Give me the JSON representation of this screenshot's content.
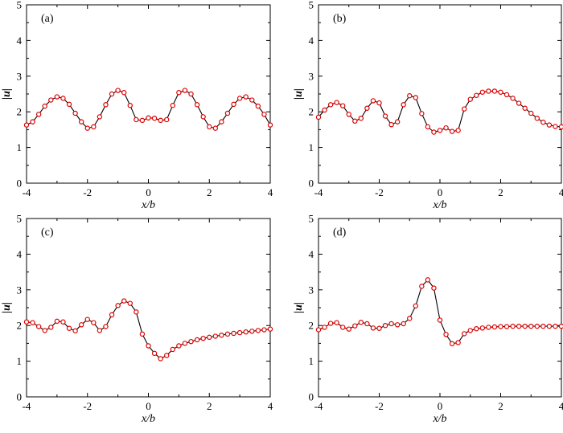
{
  "chart_data": [
    {
      "type": "line",
      "panel_label": "(a)",
      "xlabel": "x/b",
      "ylabel": "|u|",
      "xlim": [
        -4,
        4
      ],
      "ylim": [
        0,
        5
      ],
      "xticks": [
        -4,
        -2,
        0,
        2,
        4
      ],
      "yticks": [
        0,
        1,
        2,
        3,
        4,
        5
      ],
      "xtick_labels": [
        "-4",
        "-2",
        "0",
        "2",
        "4"
      ],
      "ytick_labels": [
        "0",
        "1",
        "2",
        "3",
        "4",
        "5"
      ],
      "grid": false,
      "series": [
        {
          "style": "solid black line with red open circle markers",
          "x": [
            -4.0,
            -3.8,
            -3.6,
            -3.4,
            -3.2,
            -3.0,
            -2.8,
            -2.6,
            -2.4,
            -2.2,
            -2.0,
            -1.8,
            -1.6,
            -1.4,
            -1.2,
            -1.0,
            -0.8,
            -0.6,
            -0.4,
            -0.2,
            0.0,
            0.2,
            0.4,
            0.6,
            0.8,
            1.0,
            1.2,
            1.4,
            1.6,
            1.8,
            2.0,
            2.2,
            2.4,
            2.6,
            2.8,
            3.0,
            3.2,
            3.4,
            3.6,
            3.8,
            4.0
          ],
          "y": [
            1.63,
            1.72,
            1.93,
            2.16,
            2.33,
            2.42,
            2.38,
            2.21,
            1.96,
            1.72,
            1.54,
            1.58,
            1.86,
            2.2,
            2.5,
            2.6,
            2.54,
            2.18,
            1.78,
            1.76,
            1.83,
            1.82,
            1.76,
            1.78,
            2.18,
            2.54,
            2.6,
            2.5,
            2.2,
            1.86,
            1.58,
            1.54,
            1.72,
            1.96,
            2.21,
            2.38,
            2.42,
            2.33,
            2.16,
            1.93,
            1.63
          ]
        }
      ]
    },
    {
      "type": "line",
      "panel_label": "(b)",
      "xlabel": "x/b",
      "ylabel": "|u|",
      "xlim": [
        -4,
        4
      ],
      "ylim": [
        0,
        5
      ],
      "xticks": [
        -4,
        -2,
        0,
        2,
        4
      ],
      "yticks": [
        0,
        1,
        2,
        3,
        4,
        5
      ],
      "xtick_labels": [
        "-4",
        "-2",
        "0",
        "2",
        "4"
      ],
      "ytick_labels": [
        "0",
        "1",
        "2",
        "3",
        "4",
        "5"
      ],
      "grid": false,
      "series": [
        {
          "style": "solid black line with red open circle markers",
          "x": [
            -4.0,
            -3.8,
            -3.6,
            -3.4,
            -3.2,
            -3.0,
            -2.8,
            -2.6,
            -2.4,
            -2.2,
            -2.0,
            -1.8,
            -1.6,
            -1.4,
            -1.2,
            -1.0,
            -0.8,
            -0.6,
            -0.4,
            -0.2,
            0.0,
            0.2,
            0.4,
            0.6,
            0.8,
            1.0,
            1.2,
            1.4,
            1.6,
            1.8,
            2.0,
            2.2,
            2.4,
            2.6,
            2.8,
            3.0,
            3.2,
            3.4,
            3.6,
            3.8,
            4.0
          ],
          "y": [
            1.85,
            2.05,
            2.2,
            2.26,
            2.17,
            1.93,
            1.74,
            1.82,
            2.1,
            2.31,
            2.25,
            1.88,
            1.64,
            1.72,
            2.2,
            2.45,
            2.4,
            1.95,
            1.58,
            1.43,
            1.48,
            1.55,
            1.45,
            1.48,
            2.08,
            2.35,
            2.46,
            2.55,
            2.58,
            2.58,
            2.55,
            2.48,
            2.38,
            2.24,
            2.1,
            1.96,
            1.82,
            1.71,
            1.63,
            1.59,
            1.58
          ]
        }
      ]
    },
    {
      "type": "line",
      "panel_label": "(c)",
      "xlabel": "x/b",
      "ylabel": "|u|",
      "xlim": [
        -4,
        4
      ],
      "ylim": [
        0,
        5
      ],
      "xticks": [
        -4,
        -2,
        0,
        2,
        4
      ],
      "yticks": [
        0,
        1,
        2,
        3,
        4,
        5
      ],
      "xtick_labels": [
        "-4",
        "-2",
        "0",
        "2",
        "4"
      ],
      "ytick_labels": [
        "0",
        "1",
        "2",
        "3",
        "4",
        "5"
      ],
      "grid": false,
      "series": [
        {
          "style": "solid black line with red open circle markers",
          "x": [
            -4.0,
            -3.8,
            -3.6,
            -3.4,
            -3.2,
            -3.0,
            -2.8,
            -2.6,
            -2.4,
            -2.2,
            -2.0,
            -1.8,
            -1.6,
            -1.4,
            -1.2,
            -1.0,
            -0.8,
            -0.6,
            -0.4,
            -0.2,
            0.0,
            0.2,
            0.4,
            0.6,
            0.8,
            1.0,
            1.2,
            1.4,
            1.6,
            1.8,
            2.0,
            2.2,
            2.4,
            2.6,
            2.8,
            3.0,
            3.2,
            3.4,
            3.6,
            3.8,
            4.0
          ],
          "y": [
            2.1,
            2.08,
            1.97,
            1.86,
            1.95,
            2.12,
            2.1,
            1.92,
            1.85,
            2.02,
            2.17,
            2.08,
            1.86,
            1.97,
            2.3,
            2.56,
            2.69,
            2.62,
            2.38,
            1.76,
            1.43,
            1.22,
            1.07,
            1.16,
            1.33,
            1.43,
            1.5,
            1.55,
            1.6,
            1.64,
            1.67,
            1.7,
            1.73,
            1.76,
            1.78,
            1.8,
            1.82,
            1.84,
            1.86,
            1.88,
            1.9
          ]
        }
      ]
    },
    {
      "type": "line",
      "panel_label": "(d)",
      "xlabel": "x/b",
      "ylabel": "|u|",
      "xlim": [
        -4,
        4
      ],
      "ylim": [
        0,
        5
      ],
      "xticks": [
        -4,
        -2,
        0,
        2,
        4
      ],
      "yticks": [
        0,
        1,
        2,
        3,
        4,
        5
      ],
      "xtick_labels": [
        "-4",
        "-2",
        "0",
        "2",
        "4"
      ],
      "ytick_labels": [
        "0",
        "1",
        "2",
        "3",
        "4",
        "5"
      ],
      "grid": false,
      "series": [
        {
          "style": "solid black line with red open circle markers",
          "x": [
            -4.0,
            -3.8,
            -3.6,
            -3.4,
            -3.2,
            -3.0,
            -2.8,
            -2.6,
            -2.4,
            -2.2,
            -2.0,
            -1.8,
            -1.6,
            -1.4,
            -1.2,
            -1.0,
            -0.8,
            -0.6,
            -0.4,
            -0.2,
            0.0,
            0.2,
            0.4,
            0.6,
            0.8,
            1.0,
            1.2,
            1.4,
            1.6,
            1.8,
            2.0,
            2.2,
            2.4,
            2.6,
            2.8,
            3.0,
            3.2,
            3.4,
            3.6,
            3.8,
            4.0
          ],
          "y": [
            1.88,
            1.95,
            2.06,
            2.08,
            1.95,
            1.9,
            1.99,
            2.09,
            2.05,
            1.93,
            1.92,
            2.0,
            2.05,
            2.02,
            2.05,
            2.2,
            2.55,
            3.1,
            3.28,
            3.05,
            2.15,
            1.75,
            1.49,
            1.52,
            1.77,
            1.86,
            1.91,
            1.93,
            1.95,
            1.96,
            1.97,
            1.97,
            1.98,
            1.98,
            1.98,
            1.98,
            1.98,
            1.98,
            1.98,
            1.98,
            1.98
          ]
        }
      ]
    }
  ],
  "colors": {
    "line": "#000000",
    "marker_edge": "#e00000",
    "marker_fill": "#ffffff",
    "axes": "#000000",
    "background": "#ffffff"
  }
}
